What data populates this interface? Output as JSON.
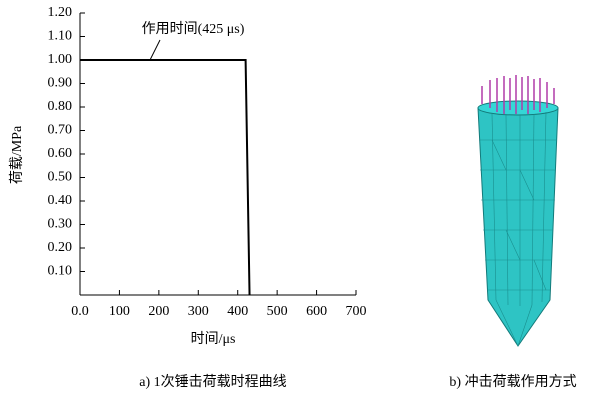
{
  "chart_data": {
    "type": "line",
    "annotation": "作用时间(425 μs)",
    "xlabel": "时间/μs",
    "ylabel": "荷载/MPa",
    "x": [
      0,
      420,
      430
    ],
    "values": [
      1.0,
      1.0,
      0
    ],
    "color": "#000000",
    "xlim": [
      0,
      700
    ],
    "xticks": [
      {
        "value": 0,
        "label": "0.0"
      },
      100,
      200,
      300,
      400,
      500,
      600,
      700
    ],
    "ylim": [
      0,
      1.2
    ],
    "yticks": [
      {
        "value": 0.1,
        "label": "0.10"
      },
      {
        "value": 0.2,
        "label": "0.20"
      },
      {
        "value": 0.3,
        "label": "0.30"
      },
      {
        "value": 0.4,
        "label": "0.40"
      },
      {
        "value": 0.5,
        "label": "0.50"
      },
      {
        "value": 0.6,
        "label": "0.60"
      },
      {
        "value": 0.7,
        "label": "0.70"
      },
      {
        "value": 0.8,
        "label": "0.80"
      },
      {
        "value": 0.9,
        "label": "0.90"
      },
      {
        "value": 1.0,
        "label": "1.00"
      },
      {
        "value": 1.1,
        "label": "1.10"
      },
      {
        "value": 1.2,
        "label": "1.20"
      }
    ]
  },
  "captions": [
    "a) 1次锤击荷载时程曲线",
    "b) 冲击荷载作用方式"
  ]
}
